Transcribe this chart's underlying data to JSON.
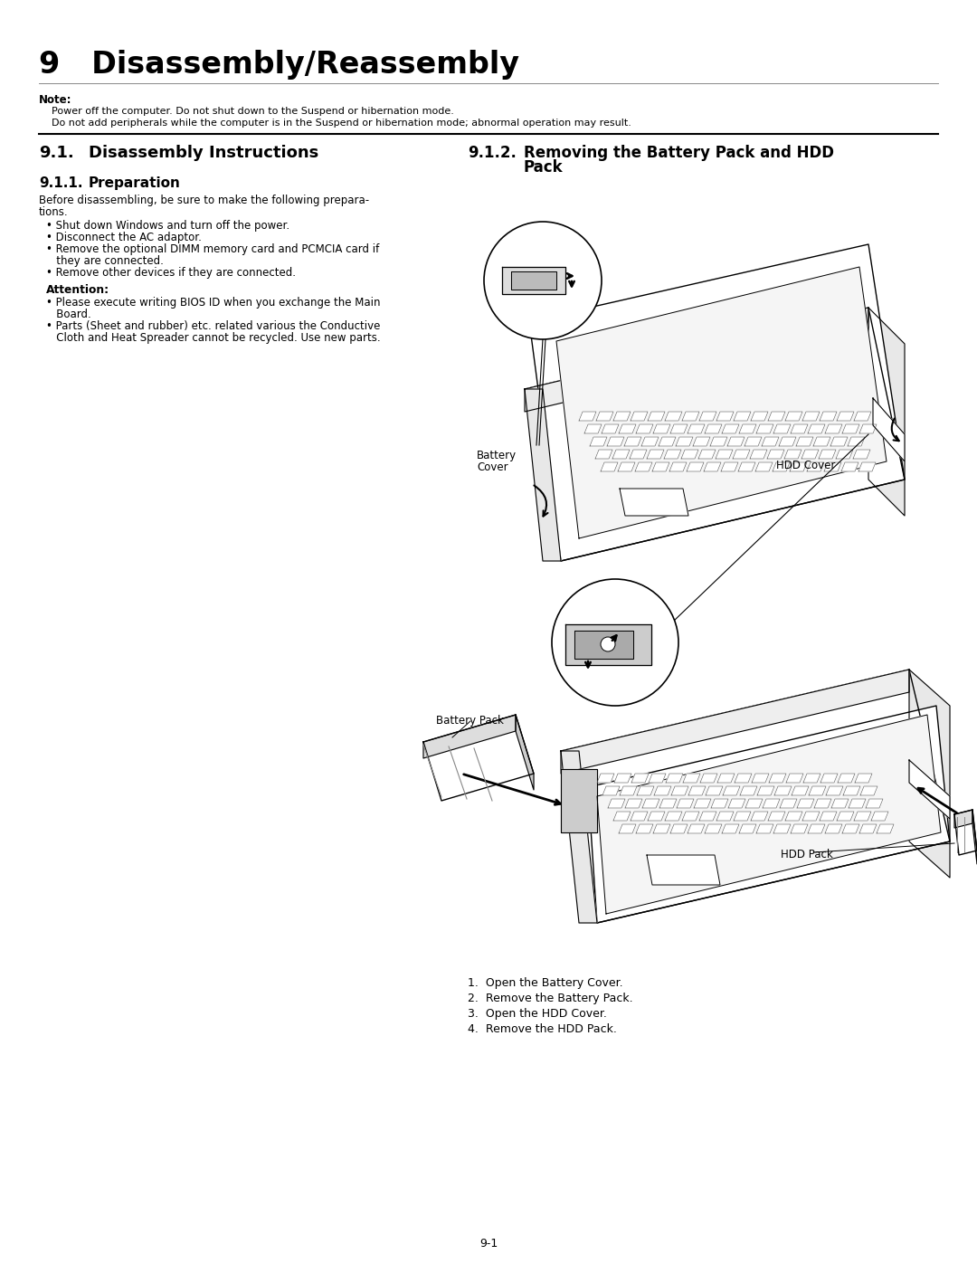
{
  "page_background": "#ffffff",
  "page_number": "9-1",
  "chapter_title": "9   Disassembly/Reassembly",
  "note_label": "Note:",
  "note_line1": "    Power off the computer. Do not shut down to the Suspend or hibernation mode.",
  "note_line2": "    Do not add peripherals while the computer is in the Suspend or hibernation mode; abnormal operation may result.",
  "sec91_label": "9.1.",
  "sec91_title": "Disassembly Instructions",
  "sec912_label": "9.1.2.",
  "sec912_title1": "Removing the Battery Pack and HDD",
  "sec912_title2": "Pack",
  "sec911_label": "9.1.1.",
  "sec911_title": "Preparation",
  "prep_line1": "Before disassembling, be sure to make the following prepara-",
  "prep_line2": "tions.",
  "bullet1": "• Shut down Windows and turn off the power.",
  "bullet2": "• Disconnect the AC adaptor.",
  "bullet3": "• Remove the optional DIMM memory card and PCMCIA card if",
  "bullet3b": "   they are connected.",
  "bullet4": "• Remove other devices if they are connected.",
  "attn_label": "Attention:",
  "attn1": "• Please execute writing BIOS ID when you exchange the Main",
  "attn1b": "   Board.",
  "attn2": "• Parts (Sheet and rubber) etc. related various the Conductive",
  "attn2b": "   Cloth and Heat Spreader cannot be recycled. Use new parts.",
  "lbl_battery_cover_line1": "Battery",
  "lbl_battery_cover_line2": "Cover",
  "lbl_hdd_cover": "HDD Cover",
  "lbl_battery_pack": "Battery Pack",
  "lbl_hdd_pack": "HDD Pack",
  "step1": "1.  Open the Battery Cover.",
  "step2": "2.  Remove the Battery Pack.",
  "step3": "3.  Open the HDD Cover.",
  "step4": "4.  Remove the HDD Pack.",
  "text_color": "#000000",
  "bg_color": "#ffffff"
}
